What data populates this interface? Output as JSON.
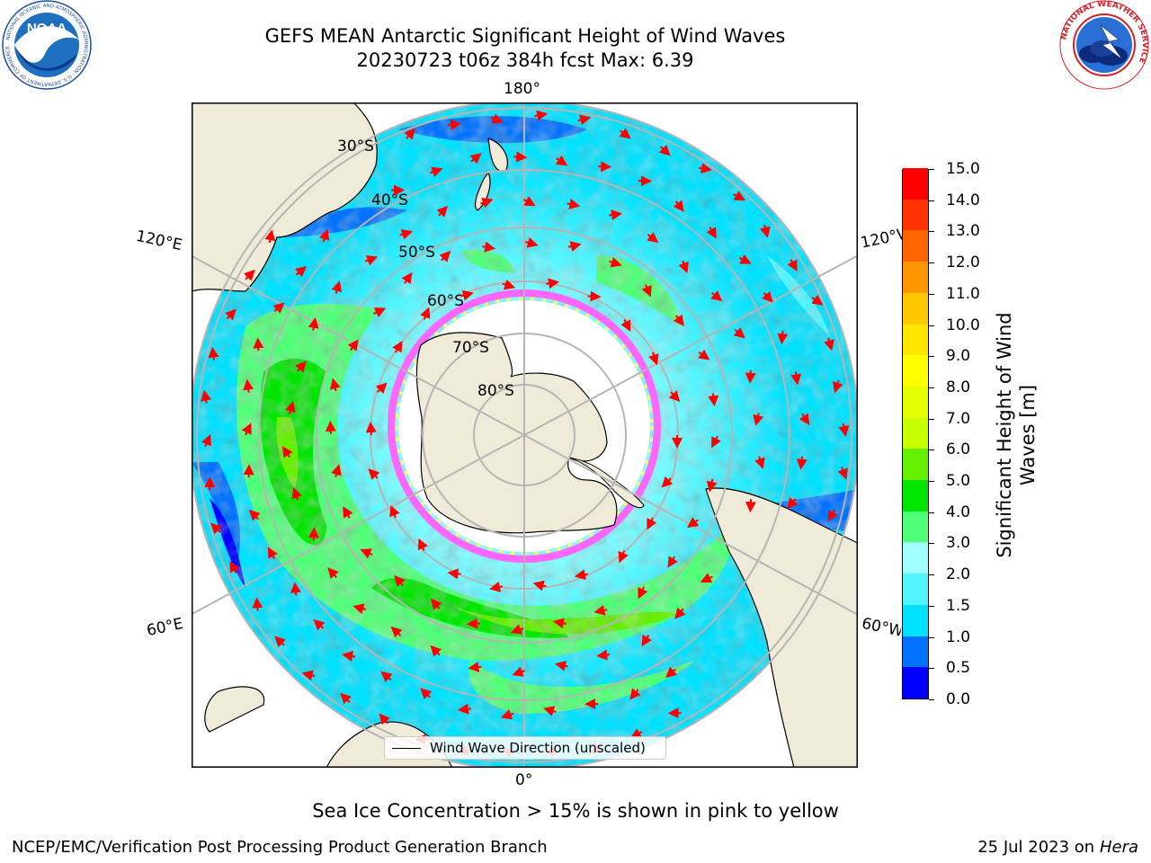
{
  "header": {
    "title_line1": "GEFS MEAN Antarctic Significant Height of Wind Waves",
    "title_line2": "20230723 t06z 384h fcst   Max: 6.39"
  },
  "logos": {
    "left": "NOAA",
    "left_ring_text": "NATIONAL OCEANIC AND ATMOSPHERIC ADMINISTRATION · U.S. DEPARTMENT OF COMMERCE",
    "right_ring_text": "NATIONAL WEATHER SERVICE"
  },
  "map": {
    "projection": "south-polar-stereographic",
    "longitude_labels": {
      "top": "180°",
      "bottom": "0°",
      "upper_left": "120°E",
      "upper_right": "120°W",
      "lower_left": "60°E",
      "lower_right": "60°W"
    },
    "latitude_labels": [
      "30°S",
      "40°S",
      "50°S",
      "60°S",
      "70°S",
      "80°S"
    ],
    "arrow_color": "#ff0000",
    "land_color": "#efebd8",
    "ice_colors": [
      "#ff66ff",
      "#ffff66"
    ],
    "max_value": 6.39
  },
  "legend": {
    "label": "Wind Wave Direction (unscaled)"
  },
  "colorbar": {
    "title": "Significant Height of Wind Waves [m]",
    "tick_labels": [
      "0.0",
      "0.5",
      "1.0",
      "1.5",
      "2.0",
      "3.0",
      "4.0",
      "5.0",
      "6.0",
      "7.0",
      "8.0",
      "9.0",
      "10.0",
      "11.0",
      "12.0",
      "13.0",
      "14.0",
      "15.0"
    ],
    "colors": [
      "#0000ff",
      "#0072ff",
      "#00e1ff",
      "#50f5ff",
      "#a0ffff",
      "#50ff78",
      "#00e600",
      "#64f000",
      "#c8ff00",
      "#e6ff00",
      "#ffff00",
      "#ffe600",
      "#ffc800",
      "#ff9600",
      "#ff6400",
      "#ff3200",
      "#ff0000"
    ]
  },
  "notes": {
    "ice": "Sea Ice Concentration > 15% is shown in pink to yellow"
  },
  "footer": {
    "left": "NCEP/EMC/Verification Post Processing Product Generation Branch",
    "date": "25 Jul 2023 on ",
    "host": "Hera"
  }
}
